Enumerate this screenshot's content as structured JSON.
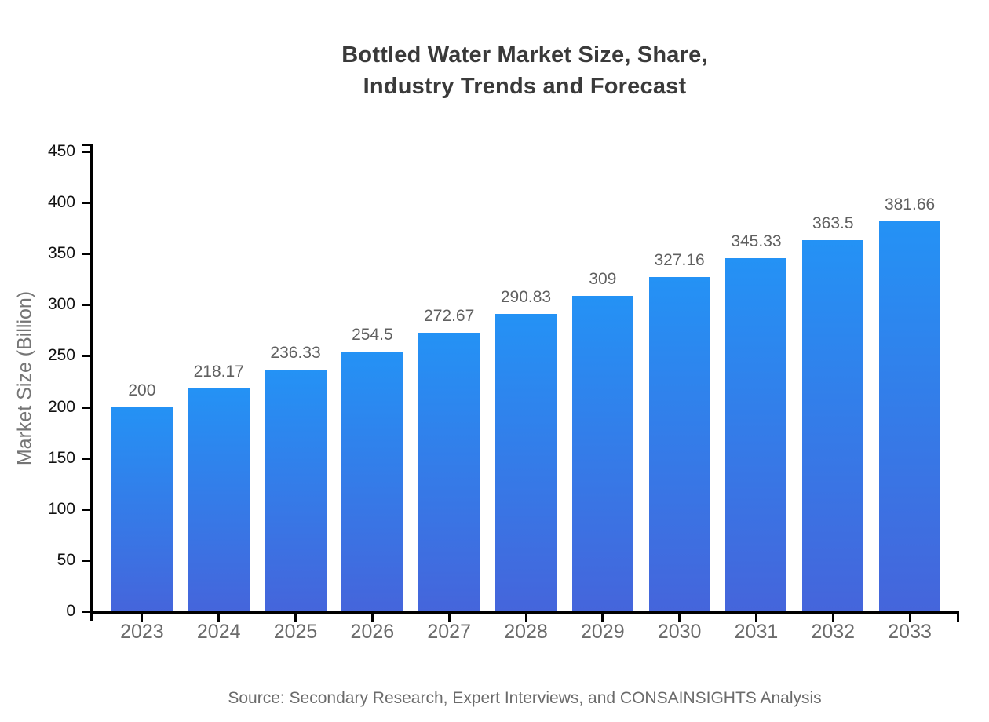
{
  "title": {
    "line1": "Bottled Water Market Size, Share,",
    "line2": "Industry Trends and Forecast"
  },
  "source": "Source: Secondary Research, Expert Interviews, and CONSAINSIGHTS Analysis",
  "chart_data": {
    "type": "bar",
    "title": "Bottled Water Market Size, Share, Industry Trends and Forecast",
    "categories": [
      "2023",
      "2024",
      "2025",
      "2026",
      "2027",
      "2028",
      "2029",
      "2030",
      "2031",
      "2032",
      "2033"
    ],
    "values": [
      200,
      218.17,
      236.33,
      254.5,
      272.67,
      290.83,
      309,
      327.16,
      345.33,
      363.5,
      381.66
    ],
    "value_labels": [
      "200",
      "218.17",
      "236.33",
      "254.5",
      "272.67",
      "290.83",
      "309",
      "327.16",
      "345.33",
      "363.5",
      "381.66"
    ],
    "xlabel": "",
    "ylabel": "Market Size (Billion)",
    "ylim": [
      0,
      450
    ],
    "yticks": [
      0,
      50,
      100,
      150,
      200,
      250,
      300,
      350,
      400,
      450
    ],
    "grid": false,
    "legend": "none",
    "bar_color_top": "#2492F5",
    "bar_color_bottom": "#4565DB",
    "axis_color": "#000000"
  }
}
